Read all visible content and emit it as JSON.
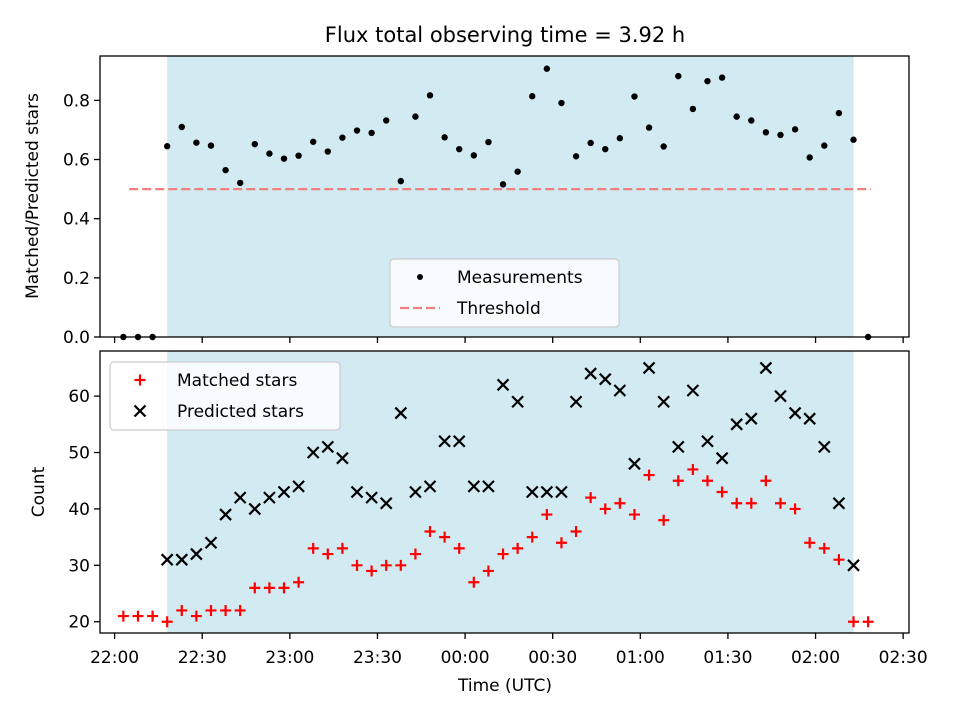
{
  "figure": {
    "title": "Flux total observing time = 3.92 h",
    "xlabel": "Time (UTC)"
  },
  "colors": {
    "shade": "#add8e6",
    "measure": "#000000",
    "threshold": "#f08080",
    "matched": "#ff0000",
    "predicted": "#000000"
  },
  "chart_data": [
    {
      "type": "scatter",
      "panel": "top",
      "ylabel": "Matched/Predicted stars",
      "xlim": [
        "21:55",
        "02:32"
      ],
      "ylim": [
        0,
        0.95
      ],
      "yticks": [
        0.0,
        0.2,
        0.4,
        0.6,
        0.8
      ],
      "yticklabels": [
        "0.0",
        "0.2",
        "0.4",
        "0.6",
        "0.8"
      ],
      "shaded_span": [
        "22:18",
        "02:13"
      ],
      "legend": {
        "placement": "lower-center",
        "items": [
          "Measurements",
          "Threshold"
        ]
      },
      "threshold": {
        "name": "Threshold",
        "value": 0.5,
        "x_range": [
          "22:05",
          "02:19"
        ],
        "style": "dashed"
      },
      "series": [
        {
          "name": "Measurements",
          "marker": "dot",
          "points": [
            [
              "22:03",
              0.0
            ],
            [
              "22:08",
              0.0
            ],
            [
              "22:13",
              0.0
            ],
            [
              "22:18",
              0.645
            ],
            [
              "22:23",
              0.71
            ],
            [
              "22:28",
              0.657
            ],
            [
              "22:33",
              0.647
            ],
            [
              "22:38",
              0.564
            ],
            [
              "22:43",
              0.521
            ],
            [
              "22:48",
              0.652
            ],
            [
              "22:53",
              0.62
            ],
            [
              "22:58",
              0.603
            ],
            [
              "23:03",
              0.613
            ],
            [
              "23:08",
              0.66
            ],
            [
              "23:13",
              0.627
            ],
            [
              "23:18",
              0.674
            ],
            [
              "23:23",
              0.698
            ],
            [
              "23:28",
              0.69
            ],
            [
              "23:33",
              0.732
            ],
            [
              "23:38",
              0.527
            ],
            [
              "23:43",
              0.745
            ],
            [
              "23:48",
              0.817
            ],
            [
              "23:53",
              0.675
            ],
            [
              "23:58",
              0.635
            ],
            [
              "00:03",
              0.614
            ],
            [
              "00:08",
              0.659
            ],
            [
              "00:13",
              0.516
            ],
            [
              "00:18",
              0.559
            ],
            [
              "00:23",
              0.814
            ],
            [
              "00:28",
              0.907
            ],
            [
              "00:33",
              0.791
            ],
            [
              "00:38",
              0.611
            ],
            [
              "00:43",
              0.656
            ],
            [
              "00:48",
              0.635
            ],
            [
              "00:53",
              0.672
            ],
            [
              "00:58",
              0.813
            ],
            [
              "01:03",
              0.708
            ],
            [
              "01:08",
              0.644
            ],
            [
              "01:13",
              0.882
            ],
            [
              "01:18",
              0.771
            ],
            [
              "01:23",
              0.865
            ],
            [
              "01:28",
              0.877
            ],
            [
              "01:33",
              0.745
            ],
            [
              "01:38",
              0.732
            ],
            [
              "01:43",
              0.692
            ],
            [
              "01:48",
              0.683
            ],
            [
              "01:53",
              0.702
            ],
            [
              "01:58",
              0.607
            ],
            [
              "02:03",
              0.647
            ],
            [
              "02:08",
              0.757
            ],
            [
              "02:13",
              0.667
            ],
            [
              "02:18",
              0.0
            ]
          ]
        }
      ]
    },
    {
      "type": "scatter",
      "panel": "bottom",
      "ylabel": "Count",
      "xlim": [
        "21:55",
        "02:32"
      ],
      "ylim": [
        18,
        68
      ],
      "yticks": [
        20,
        30,
        40,
        50,
        60
      ],
      "yticklabels": [
        "20",
        "30",
        "40",
        "50",
        "60"
      ],
      "xticks": [
        "22:00",
        "22:30",
        "23:00",
        "23:30",
        "00:00",
        "00:30",
        "01:00",
        "01:30",
        "02:00",
        "02:30"
      ],
      "xticklabels": [
        "22:00",
        "22:30",
        "23:00",
        "23:30",
        "00:00",
        "00:30",
        "01:00",
        "01:30",
        "02:00",
        "02:30"
      ],
      "shaded_span": [
        "22:18",
        "02:13"
      ],
      "legend": {
        "placement": "upper-left",
        "items": [
          "Matched stars",
          "Predicted stars"
        ]
      },
      "series": [
        {
          "name": "Matched stars",
          "marker": "plus",
          "points": [
            [
              "22:03",
              21
            ],
            [
              "22:08",
              21
            ],
            [
              "22:13",
              21
            ],
            [
              "22:18",
              20
            ],
            [
              "22:23",
              22
            ],
            [
              "22:28",
              21
            ],
            [
              "22:33",
              22
            ],
            [
              "22:38",
              22
            ],
            [
              "22:43",
              22
            ],
            [
              "22:48",
              26
            ],
            [
              "22:53",
              26
            ],
            [
              "22:58",
              26
            ],
            [
              "23:03",
              27
            ],
            [
              "23:08",
              33
            ],
            [
              "23:13",
              32
            ],
            [
              "23:18",
              33
            ],
            [
              "23:23",
              30
            ],
            [
              "23:28",
              29
            ],
            [
              "23:33",
              30
            ],
            [
              "23:38",
              30
            ],
            [
              "23:43",
              32
            ],
            [
              "23:48",
              36
            ],
            [
              "23:53",
              35
            ],
            [
              "23:58",
              33
            ],
            [
              "00:03",
              27
            ],
            [
              "00:08",
              29
            ],
            [
              "00:13",
              32
            ],
            [
              "00:18",
              33
            ],
            [
              "00:23",
              35
            ],
            [
              "00:28",
              39
            ],
            [
              "00:33",
              34
            ],
            [
              "00:38",
              36
            ],
            [
              "00:43",
              42
            ],
            [
              "00:48",
              40
            ],
            [
              "00:53",
              41
            ],
            [
              "00:58",
              39
            ],
            [
              "01:03",
              46
            ],
            [
              "01:08",
              38
            ],
            [
              "01:13",
              45
            ],
            [
              "01:18",
              47
            ],
            [
              "01:23",
              45
            ],
            [
              "01:28",
              43
            ],
            [
              "01:33",
              41
            ],
            [
              "01:38",
              41
            ],
            [
              "01:43",
              45
            ],
            [
              "01:48",
              41
            ],
            [
              "01:53",
              40
            ],
            [
              "01:58",
              34
            ],
            [
              "02:03",
              33
            ],
            [
              "02:08",
              31
            ],
            [
              "02:13",
              20
            ],
            [
              "02:18",
              20
            ]
          ]
        },
        {
          "name": "Predicted stars",
          "marker": "x",
          "points": [
            [
              "22:18",
              31
            ],
            [
              "22:23",
              31
            ],
            [
              "22:28",
              32
            ],
            [
              "22:33",
              34
            ],
            [
              "22:38",
              39
            ],
            [
              "22:43",
              42
            ],
            [
              "22:48",
              40
            ],
            [
              "22:53",
              42
            ],
            [
              "22:58",
              43
            ],
            [
              "23:03",
              44
            ],
            [
              "23:08",
              50
            ],
            [
              "23:13",
              51
            ],
            [
              "23:18",
              49
            ],
            [
              "23:23",
              43
            ],
            [
              "23:28",
              42
            ],
            [
              "23:33",
              41
            ],
            [
              "23:38",
              57
            ],
            [
              "23:43",
              43
            ],
            [
              "23:48",
              44
            ],
            [
              "23:53",
              52
            ],
            [
              "23:58",
              52
            ],
            [
              "00:03",
              44
            ],
            [
              "00:08",
              44
            ],
            [
              "00:13",
              62
            ],
            [
              "00:18",
              59
            ],
            [
              "00:23",
              43
            ],
            [
              "00:28",
              43
            ],
            [
              "00:33",
              43
            ],
            [
              "00:38",
              59
            ],
            [
              "00:43",
              64
            ],
            [
              "00:48",
              63
            ],
            [
              "00:53",
              61
            ],
            [
              "00:58",
              48
            ],
            [
              "01:03",
              65
            ],
            [
              "01:08",
              59
            ],
            [
              "01:13",
              51
            ],
            [
              "01:18",
              61
            ],
            [
              "01:23",
              52
            ],
            [
              "01:28",
              49
            ],
            [
              "01:33",
              55
            ],
            [
              "01:38",
              56
            ],
            [
              "01:43",
              65
            ],
            [
              "01:48",
              60
            ],
            [
              "01:53",
              57
            ],
            [
              "01:58",
              56
            ],
            [
              "02:03",
              51
            ],
            [
              "02:08",
              41
            ],
            [
              "02:13",
              30
            ]
          ]
        }
      ]
    }
  ]
}
